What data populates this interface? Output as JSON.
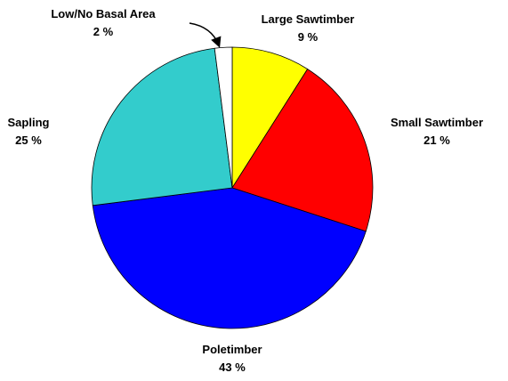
{
  "chart_data": {
    "type": "pie",
    "title": "",
    "slices": [
      {
        "label": "Large Sawtimber",
        "value": 9,
        "value_text": "9 %",
        "color": "#ffff00"
      },
      {
        "label": "Small Sawtimber",
        "value": 21,
        "value_text": "21 %",
        "color": "#ff0000"
      },
      {
        "label": "Poletimber",
        "value": 43,
        "value_text": "43 %",
        "color": "#0000ff"
      },
      {
        "label": "Sapling",
        "value": 25,
        "value_text": "25 %",
        "color": "#33cccc"
      },
      {
        "label": "Low/No Basal Area",
        "value": 2,
        "value_text": "2 %",
        "color": "#ffffff"
      }
    ],
    "start_angle_deg": 0,
    "direction": "clockwise",
    "outline_color": "#000000",
    "callout_arrow_for": "Low/No Basal Area"
  }
}
